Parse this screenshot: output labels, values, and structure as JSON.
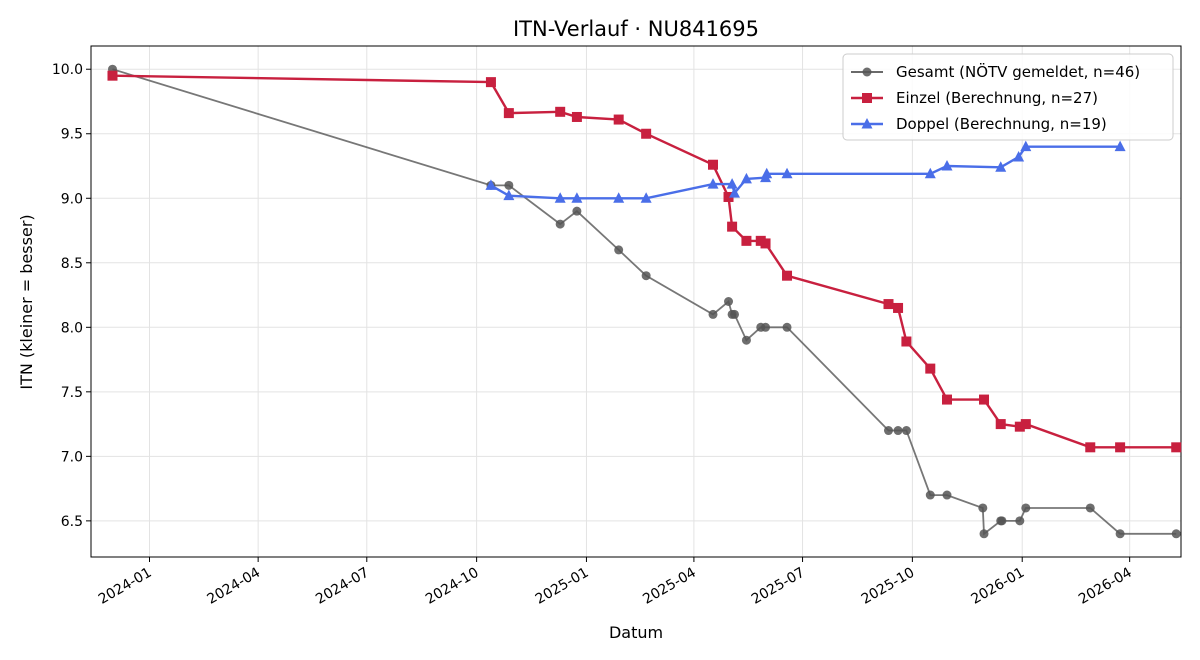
{
  "chart_data": {
    "type": "line",
    "title": "ITN-Verlauf · NU841695",
    "xlabel": "Datum",
    "ylabel": "ITN  (kleiner = besser)",
    "xlim": [
      "2023-11-13",
      "2026-05-14"
    ],
    "ylim": [
      6.22,
      10.18
    ],
    "x_ticks": [
      "2024-01",
      "2024-04",
      "2024-07",
      "2024-10",
      "2025-01",
      "2025-04",
      "2025-07",
      "2025-10",
      "2026-01",
      "2026-04"
    ],
    "y_ticks": [
      6.5,
      7.0,
      7.5,
      8.0,
      8.5,
      9.0,
      9.5,
      10.0
    ],
    "grid": true,
    "legend_position": "top-right",
    "series": [
      {
        "name": "Gesamt (NÖTV gemeldet, n=46)",
        "color": "#555555",
        "marker": "circle",
        "points": [
          [
            "2023-12-01",
            10.0
          ],
          [
            "2024-10-13",
            9.1
          ],
          [
            "2024-10-28",
            9.1
          ],
          [
            "2024-12-10",
            8.8
          ],
          [
            "2024-12-24",
            8.9
          ],
          [
            "2025-01-28",
            8.6
          ],
          [
            "2025-02-20",
            8.4
          ],
          [
            "2025-04-17",
            8.1
          ],
          [
            "2025-04-30",
            8.2
          ],
          [
            "2025-05-03",
            8.1
          ],
          [
            "2025-05-05",
            8.1
          ],
          [
            "2025-05-15",
            7.9
          ],
          [
            "2025-05-27",
            8.0
          ],
          [
            "2025-05-31",
            8.0
          ],
          [
            "2025-06-18",
            8.0
          ],
          [
            "2025-09-11",
            7.2
          ],
          [
            "2025-09-19",
            7.2
          ],
          [
            "2025-09-26",
            7.2
          ],
          [
            "2025-10-16",
            6.7
          ],
          [
            "2025-10-30",
            6.7
          ],
          [
            "2025-11-29",
            6.6
          ],
          [
            "2025-11-30",
            6.4
          ],
          [
            "2025-12-14",
            6.5
          ],
          [
            "2025-12-15",
            6.5
          ],
          [
            "2025-12-30",
            6.5
          ],
          [
            "2026-01-04",
            6.6
          ],
          [
            "2026-02-27",
            6.6
          ],
          [
            "2026-03-24",
            6.4
          ],
          [
            "2026-05-10",
            6.4
          ]
        ]
      },
      {
        "name": "Einzel (Berechnung, n=27)",
        "color": "#c8203f",
        "marker": "square",
        "points": [
          [
            "2023-12-01",
            9.95
          ],
          [
            "2024-10-13",
            9.9
          ],
          [
            "2024-10-28",
            9.66
          ],
          [
            "2024-12-10",
            9.67
          ],
          [
            "2024-12-24",
            9.63
          ],
          [
            "2025-01-28",
            9.61
          ],
          [
            "2025-02-20",
            9.5
          ],
          [
            "2025-04-17",
            9.26
          ],
          [
            "2025-04-30",
            9.01
          ],
          [
            "2025-05-03",
            8.78
          ],
          [
            "2025-05-15",
            8.67
          ],
          [
            "2025-05-27",
            8.67
          ],
          [
            "2025-05-31",
            8.65
          ],
          [
            "2025-06-18",
            8.4
          ],
          [
            "2025-09-11",
            8.18
          ],
          [
            "2025-09-19",
            8.15
          ],
          [
            "2025-09-26",
            7.89
          ],
          [
            "2025-10-16",
            7.68
          ],
          [
            "2025-10-30",
            7.44
          ],
          [
            "2025-11-30",
            7.44
          ],
          [
            "2025-12-14",
            7.25
          ],
          [
            "2025-12-30",
            7.23
          ],
          [
            "2026-01-04",
            7.25
          ],
          [
            "2026-02-27",
            7.07
          ],
          [
            "2026-03-24",
            7.07
          ],
          [
            "2026-05-10",
            7.07
          ]
        ]
      },
      {
        "name": "Doppel (Berechnung, n=19)",
        "color": "#4a6ee8",
        "marker": "triangle",
        "points": [
          [
            "2024-10-13",
            9.1
          ],
          [
            "2024-10-28",
            9.02
          ],
          [
            "2024-12-10",
            9.0
          ],
          [
            "2024-12-24",
            9.0
          ],
          [
            "2025-01-28",
            9.0
          ],
          [
            "2025-02-20",
            9.0
          ],
          [
            "2025-04-17",
            9.11
          ],
          [
            "2025-05-03",
            9.11
          ],
          [
            "2025-05-05",
            9.04
          ],
          [
            "2025-05-15",
            9.15
          ],
          [
            "2025-05-31",
            9.16
          ],
          [
            "2025-06-01",
            9.19
          ],
          [
            "2025-06-18",
            9.19
          ],
          [
            "2025-10-16",
            9.19
          ],
          [
            "2025-10-30",
            9.25
          ],
          [
            "2025-12-14",
            9.24
          ],
          [
            "2025-12-29",
            9.32
          ],
          [
            "2026-01-04",
            9.4
          ],
          [
            "2026-03-24",
            9.4
          ]
        ]
      }
    ]
  }
}
